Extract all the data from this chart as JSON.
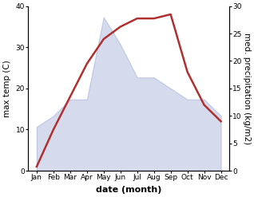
{
  "months": [
    "Jan",
    "Feb",
    "Mar",
    "Apr",
    "May",
    "Jun",
    "Jul",
    "Aug",
    "Sep",
    "Oct",
    "Nov",
    "Dec"
  ],
  "month_x": [
    0,
    1,
    2,
    3,
    4,
    5,
    6,
    7,
    8,
    9,
    10,
    11
  ],
  "temperature": [
    1,
    10,
    18,
    26,
    32,
    35,
    37,
    37,
    38,
    24,
    16,
    12
  ],
  "precipitation": [
    8,
    10,
    13,
    13,
    28,
    23,
    17,
    17,
    15,
    13,
    13,
    10
  ],
  "temp_color": "#b03030",
  "precip_color": "#8899cc",
  "precip_fill_alpha": 0.35,
  "temp_ylim": [
    0,
    40
  ],
  "precip_ylim": [
    0,
    30
  ],
  "temp_yticks": [
    0,
    10,
    20,
    30,
    40
  ],
  "precip_yticks": [
    0,
    5,
    10,
    15,
    20,
    25,
    30
  ],
  "xlabel": "date (month)",
  "ylabel_left": "max temp (C)",
  "ylabel_right": "med. precipitation (kg/m2)",
  "figsize": [
    3.18,
    2.47
  ],
  "dpi": 100,
  "line_width": 1.8,
  "xlabel_fontsize": 8,
  "ylabel_fontsize": 7.5,
  "tick_fontsize": 6.5,
  "xlabel_fontweight": "bold"
}
